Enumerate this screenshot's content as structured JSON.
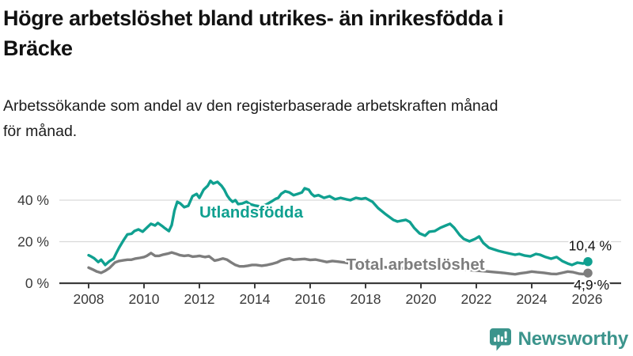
{
  "header": {
    "title_line1": "Högre arbetslöshet bland utrikes- än inrikesfödda i",
    "title_line2": "Bräcke",
    "subtitle_line1": "Arbetssökande som andel av den registerbaserade arbetskraften månad",
    "subtitle_line2": "för månad."
  },
  "chart_data": {
    "type": "line",
    "title": "Högre arbetslöshet bland utrikes- än inrikesfödda i Bräcke",
    "subtitle": "Arbetssökande som andel av den registerbaserade arbetskraften månad för månad.",
    "x_axis": {
      "tick_values": [
        2008,
        2010,
        2012,
        2014,
        2016,
        2018,
        2020,
        2022,
        2024,
        2026
      ],
      "tick_labels": [
        "2008",
        "2010",
        "2012",
        "2014",
        "2016",
        "2018",
        "2020",
        "2022",
        "2024",
        "2026"
      ],
      "range": [
        2008,
        2026.1
      ]
    },
    "y_axis": {
      "tick_values": [
        0,
        20,
        40
      ],
      "tick_labels": [
        "0 %",
        "20 %",
        "40 %"
      ],
      "tick_suffix": " %",
      "gridlines": [
        20,
        40
      ],
      "range": [
        0,
        52
      ],
      "grid": true
    },
    "series": [
      {
        "name": "Utlandsfödda",
        "color": "#10a090",
        "end_label": "10,4 %",
        "end_value": 10.4,
        "points": [
          [
            2008.0,
            13.5
          ],
          [
            2008.1,
            12.8
          ],
          [
            2008.2,
            12.0
          ],
          [
            2008.35,
            10.2
          ],
          [
            2008.45,
            11.3
          ],
          [
            2008.6,
            8.8
          ],
          [
            2008.75,
            10.6
          ],
          [
            2008.9,
            11.8
          ],
          [
            2009.0,
            14.5
          ],
          [
            2009.1,
            17.1
          ],
          [
            2009.25,
            20.5
          ],
          [
            2009.4,
            23.5
          ],
          [
            2009.55,
            23.8
          ],
          [
            2009.65,
            25.1
          ],
          [
            2009.8,
            25.9
          ],
          [
            2009.95,
            24.8
          ],
          [
            2010.1,
            26.7
          ],
          [
            2010.25,
            28.6
          ],
          [
            2010.4,
            27.8
          ],
          [
            2010.5,
            29.0
          ],
          [
            2010.65,
            27.6
          ],
          [
            2010.75,
            26.5
          ],
          [
            2010.9,
            25.1
          ],
          [
            2011.0,
            28.0
          ],
          [
            2011.1,
            35.0
          ],
          [
            2011.2,
            39.2
          ],
          [
            2011.3,
            38.5
          ],
          [
            2011.45,
            36.6
          ],
          [
            2011.6,
            37.3
          ],
          [
            2011.75,
            41.9
          ],
          [
            2011.9,
            43.0
          ],
          [
            2012.0,
            41.1
          ],
          [
            2012.15,
            45.0
          ],
          [
            2012.3,
            46.9
          ],
          [
            2012.4,
            49.3
          ],
          [
            2012.5,
            48.0
          ],
          [
            2012.65,
            48.8
          ],
          [
            2012.8,
            46.9
          ],
          [
            2012.9,
            45.0
          ],
          [
            2013.0,
            42.3
          ],
          [
            2013.1,
            40.4
          ],
          [
            2013.2,
            39.2
          ],
          [
            2013.3,
            40.0
          ],
          [
            2013.4,
            38.1
          ],
          [
            2013.55,
            38.4
          ],
          [
            2013.7,
            39.2
          ],
          [
            2013.85,
            38.0
          ],
          [
            2014.0,
            37.4
          ],
          [
            2014.2,
            37.0
          ],
          [
            2014.4,
            37.8
          ],
          [
            2014.6,
            39.3
          ],
          [
            2014.75,
            40.6
          ],
          [
            2014.85,
            41.1
          ],
          [
            2014.95,
            43.0
          ],
          [
            2015.1,
            44.3
          ],
          [
            2015.25,
            43.7
          ],
          [
            2015.4,
            42.4
          ],
          [
            2015.55,
            43.0
          ],
          [
            2015.7,
            43.7
          ],
          [
            2015.8,
            45.7
          ],
          [
            2015.95,
            45.0
          ],
          [
            2016.05,
            43.0
          ],
          [
            2016.15,
            41.9
          ],
          [
            2016.3,
            42.4
          ],
          [
            2016.5,
            41.1
          ],
          [
            2016.7,
            41.9
          ],
          [
            2016.9,
            40.4
          ],
          [
            2017.1,
            41.1
          ],
          [
            2017.3,
            40.4
          ],
          [
            2017.45,
            40.0
          ],
          [
            2017.65,
            41.1
          ],
          [
            2017.85,
            40.6
          ],
          [
            2018.0,
            41.0
          ],
          [
            2018.25,
            39.2
          ],
          [
            2018.45,
            36.2
          ],
          [
            2018.7,
            33.5
          ],
          [
            2019.0,
            30.5
          ],
          [
            2019.15,
            29.7
          ],
          [
            2019.45,
            30.5
          ],
          [
            2019.6,
            29.5
          ],
          [
            2019.75,
            26.7
          ],
          [
            2019.95,
            24.0
          ],
          [
            2020.15,
            22.9
          ],
          [
            2020.3,
            24.8
          ],
          [
            2020.5,
            25.1
          ],
          [
            2020.7,
            26.7
          ],
          [
            2020.9,
            27.8
          ],
          [
            2021.05,
            28.6
          ],
          [
            2021.2,
            26.7
          ],
          [
            2021.4,
            23.2
          ],
          [
            2021.55,
            21.3
          ],
          [
            2021.75,
            20.2
          ],
          [
            2021.95,
            21.3
          ],
          [
            2022.1,
            22.5
          ],
          [
            2022.25,
            19.4
          ],
          [
            2022.45,
            17.1
          ],
          [
            2022.6,
            16.4
          ],
          [
            2022.8,
            15.6
          ],
          [
            2023.0,
            14.9
          ],
          [
            2023.2,
            14.3
          ],
          [
            2023.4,
            13.7
          ],
          [
            2023.55,
            14.1
          ],
          [
            2023.75,
            13.3
          ],
          [
            2023.95,
            12.9
          ],
          [
            2024.15,
            14.1
          ],
          [
            2024.3,
            13.7
          ],
          [
            2024.5,
            12.6
          ],
          [
            2024.7,
            11.8
          ],
          [
            2024.9,
            12.6
          ],
          [
            2025.1,
            10.7
          ],
          [
            2025.3,
            9.5
          ],
          [
            2025.45,
            8.8
          ],
          [
            2025.65,
            9.9
          ],
          [
            2025.85,
            9.5
          ],
          [
            2026.03,
            10.4
          ]
        ]
      },
      {
        "name": "Total arbetslöshet",
        "color": "#7d7d7d",
        "end_label": "4,9 %",
        "end_value": 4.9,
        "points": [
          [
            2008.0,
            7.5
          ],
          [
            2008.15,
            6.6
          ],
          [
            2008.3,
            5.6
          ],
          [
            2008.45,
            5.0
          ],
          [
            2008.6,
            6.0
          ],
          [
            2008.75,
            7.3
          ],
          [
            2008.95,
            10.0
          ],
          [
            2009.1,
            10.7
          ],
          [
            2009.25,
            11.0
          ],
          [
            2009.4,
            11.3
          ],
          [
            2009.55,
            11.3
          ],
          [
            2009.7,
            11.9
          ],
          [
            2009.85,
            12.2
          ],
          [
            2010.0,
            12.6
          ],
          [
            2010.1,
            13.2
          ],
          [
            2010.25,
            14.5
          ],
          [
            2010.4,
            13.2
          ],
          [
            2010.55,
            13.2
          ],
          [
            2010.7,
            13.8
          ],
          [
            2010.85,
            14.2
          ],
          [
            2011.0,
            14.8
          ],
          [
            2011.15,
            14.2
          ],
          [
            2011.3,
            13.5
          ],
          [
            2011.45,
            13.2
          ],
          [
            2011.6,
            13.4
          ],
          [
            2011.75,
            12.8
          ],
          [
            2011.9,
            13.0
          ],
          [
            2012.0,
            13.2
          ],
          [
            2012.2,
            12.6
          ],
          [
            2012.35,
            13.0
          ],
          [
            2012.55,
            10.9
          ],
          [
            2012.7,
            11.3
          ],
          [
            2012.85,
            11.9
          ],
          [
            2013.0,
            11.3
          ],
          [
            2013.15,
            10.0
          ],
          [
            2013.3,
            8.8
          ],
          [
            2013.45,
            8.1
          ],
          [
            2013.6,
            8.1
          ],
          [
            2013.75,
            8.4
          ],
          [
            2013.9,
            8.8
          ],
          [
            2014.05,
            8.8
          ],
          [
            2014.25,
            8.4
          ],
          [
            2014.45,
            8.8
          ],
          [
            2014.65,
            9.4
          ],
          [
            2014.8,
            10.0
          ],
          [
            2014.95,
            11.0
          ],
          [
            2015.1,
            11.5
          ],
          [
            2015.25,
            11.9
          ],
          [
            2015.4,
            11.3
          ],
          [
            2015.6,
            11.5
          ],
          [
            2015.8,
            11.7
          ],
          [
            2016.0,
            11.2
          ],
          [
            2016.2,
            11.4
          ],
          [
            2016.4,
            10.8
          ],
          [
            2016.6,
            10.2
          ],
          [
            2016.8,
            10.7
          ],
          [
            2017.0,
            10.4
          ],
          [
            2017.25,
            10.0
          ],
          [
            2017.5,
            9.4
          ],
          [
            2017.8,
            8.9
          ],
          [
            2018.1,
            8.4
          ],
          [
            2018.4,
            8.0
          ],
          [
            2018.7,
            7.7
          ],
          [
            2019.0,
            7.4
          ],
          [
            2019.3,
            7.2
          ],
          [
            2019.6,
            7.3
          ],
          [
            2019.9,
            7.6
          ],
          [
            2020.2,
            8.1
          ],
          [
            2020.5,
            8.3
          ],
          [
            2020.8,
            7.8
          ],
          [
            2021.1,
            7.3
          ],
          [
            2021.4,
            6.8
          ],
          [
            2021.7,
            6.4
          ],
          [
            2022.0,
            6.1
          ],
          [
            2022.3,
            5.8
          ],
          [
            2022.6,
            5.4
          ],
          [
            2022.85,
            5.1
          ],
          [
            2023.0,
            4.9
          ],
          [
            2023.2,
            4.6
          ],
          [
            2023.4,
            4.3
          ],
          [
            2023.6,
            4.8
          ],
          [
            2023.8,
            5.1
          ],
          [
            2024.0,
            5.6
          ],
          [
            2024.2,
            5.3
          ],
          [
            2024.45,
            5.0
          ],
          [
            2024.7,
            4.5
          ],
          [
            2024.9,
            4.4
          ],
          [
            2025.1,
            5.0
          ],
          [
            2025.3,
            5.6
          ],
          [
            2025.5,
            5.3
          ],
          [
            2025.7,
            4.6
          ],
          [
            2025.85,
            4.4
          ],
          [
            2026.03,
            4.9
          ]
        ]
      }
    ],
    "series_labels": [
      {
        "text": "Utlandsfödda",
        "x": 2012.0,
        "y": 31.6,
        "color": "#10a090"
      },
      {
        "text": "Total arbetslöshet",
        "x": 2017.3,
        "y": 6.5,
        "color": "#7d7d7d"
      }
    ],
    "legend_position": "inline"
  },
  "footer": {
    "brand": "Newsworthy",
    "brand_color": "#3b948c",
    "logo_icon": "speech-bubble-bar-chart-icon"
  }
}
